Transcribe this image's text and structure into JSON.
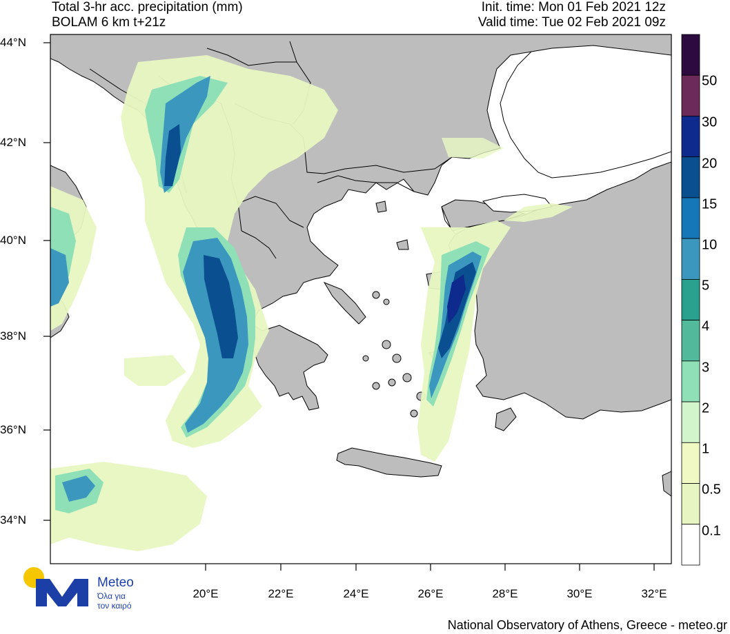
{
  "header": {
    "title_line1": "Total 3-hr acc. precipitation (mm)",
    "title_line2": "BOLAM 6 km t+21z",
    "init_time": "Init. time: Mon 01 Feb 2021 12z",
    "valid_time": "Valid time: Tue 02 Feb 2021 09z"
  },
  "axes": {
    "lat_labels": [
      "44°N",
      "42°N",
      "40°N",
      "38°N",
      "36°N",
      "34°N"
    ],
    "lon_labels": [
      "20°E",
      "22°E",
      "24°E",
      "26°E",
      "28°E",
      "30°E",
      "32°E"
    ]
  },
  "colorbar": {
    "labels": [
      "50",
      "30",
      "20",
      "15",
      "10",
      "5",
      "4",
      "3",
      "2",
      "1",
      "0.5",
      "0.1"
    ],
    "colors": [
      "#2d0a3f",
      "#6b2a5a",
      "#0d2a8c",
      "#0a4f8f",
      "#1577b8",
      "#3c97bf",
      "#2aa08e",
      "#52b99a",
      "#8fe0b6",
      "#d2f5cc",
      "#f0f8c4",
      "#e6f5c2",
      "#ffffff"
    ]
  },
  "colors": {
    "land": "#bdbdbd",
    "sea": "#ffffff",
    "border": "#000000"
  },
  "logo": {
    "name": "Meteo",
    "tagline_line1": "Όλα για",
    "tagline_line2": "τον καιρό",
    "icon": "meteo-m-logo-icon"
  },
  "footer": {
    "credit": "National Observatory of Athens, Greece - meteo.gr"
  }
}
